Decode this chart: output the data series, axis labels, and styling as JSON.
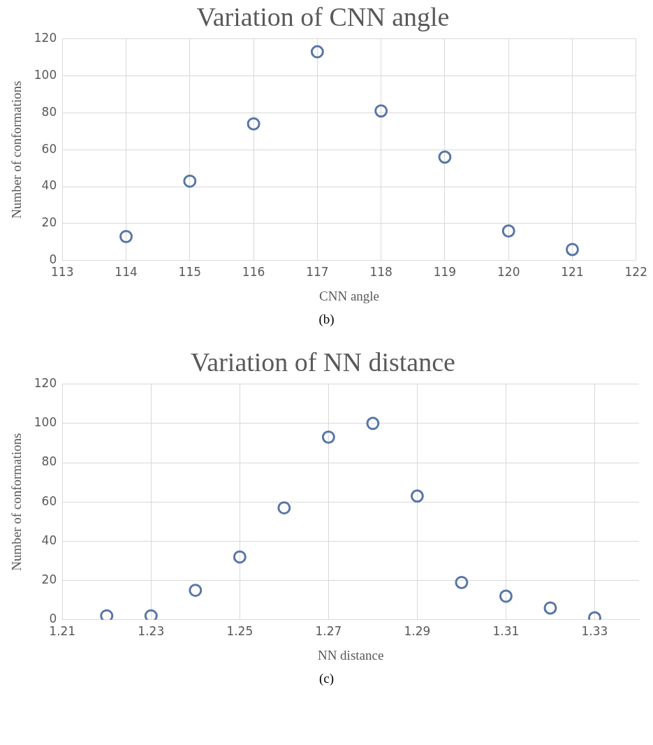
{
  "chart_data": [
    {
      "type": "scatter",
      "title": "Variation of CNN angle",
      "xlabel": "CNN angle",
      "ylabel": "Number of conformations",
      "annotations": [
        "(b)"
      ],
      "x": [
        114,
        115,
        116,
        117,
        118,
        119,
        120,
        121
      ],
      "series": [
        {
          "color": "#5876a8",
          "values": [
            13,
            43,
            74,
            113,
            81,
            56,
            16,
            6
          ]
        }
      ],
      "xlim": [
        113,
        122
      ],
      "xticks": [
        113,
        114,
        115,
        116,
        117,
        118,
        119,
        120,
        121,
        122
      ],
      "ylim": [
        0,
        120
      ],
      "yticks": [
        0,
        20,
        40,
        60,
        80,
        100,
        120
      ],
      "grid": true,
      "legend": false,
      "marker": "circle"
    },
    {
      "type": "scatter",
      "title": "Variation of NN distance",
      "xlabel": "NN distance",
      "ylabel": "Number of conformations",
      "annotations": [
        "(c)"
      ],
      "x": [
        1.22,
        1.23,
        1.24,
        1.25,
        1.26,
        1.27,
        1.28,
        1.29,
        1.3,
        1.31,
        1.32,
        1.33
      ],
      "series": [
        {
          "color": "#5876a8",
          "values": [
            2,
            2,
            15,
            32,
            57,
            93,
            100,
            63,
            19,
            12,
            6,
            1
          ]
        }
      ],
      "xlim": [
        1.21,
        1.34
      ],
      "xticks": [
        1.21,
        1.23,
        1.25,
        1.27,
        1.29,
        1.31,
        1.33
      ],
      "ylim": [
        0,
        120
      ],
      "yticks": [
        0,
        20,
        40,
        60,
        80,
        100,
        120
      ],
      "grid": true,
      "legend": false,
      "marker": "circle"
    }
  ]
}
